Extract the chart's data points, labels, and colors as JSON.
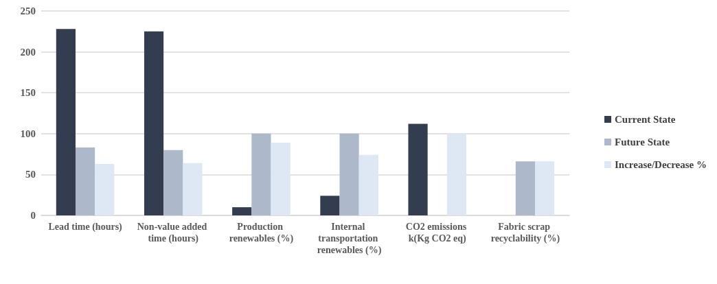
{
  "chart_data": {
    "type": "bar",
    "categories": [
      "Lead time (hours)",
      "Non-value added time (hours)",
      "Production renewables (%)",
      "Internal transportation renewables (%)",
      "CO2 emissions k(Kg CO2 eq)",
      "Fabric scrap recyclability (%)"
    ],
    "series": [
      {
        "name": "Current State",
        "color": "#333d4f",
        "values": [
          228,
          225,
          10,
          24,
          112,
          null
        ]
      },
      {
        "name": "Future State",
        "color": "#adb8ca",
        "values": [
          83,
          80,
          100,
          100,
          null,
          66
        ]
      },
      {
        "name": "Increase/Decrease %",
        "color": "#dde8f4",
        "values": [
          63,
          64,
          89,
          74,
          100,
          66
        ]
      }
    ],
    "ylim": [
      0,
      250
    ],
    "yticks": [
      0,
      50,
      100,
      150,
      200,
      250
    ],
    "grid": "y",
    "legend": "right"
  }
}
